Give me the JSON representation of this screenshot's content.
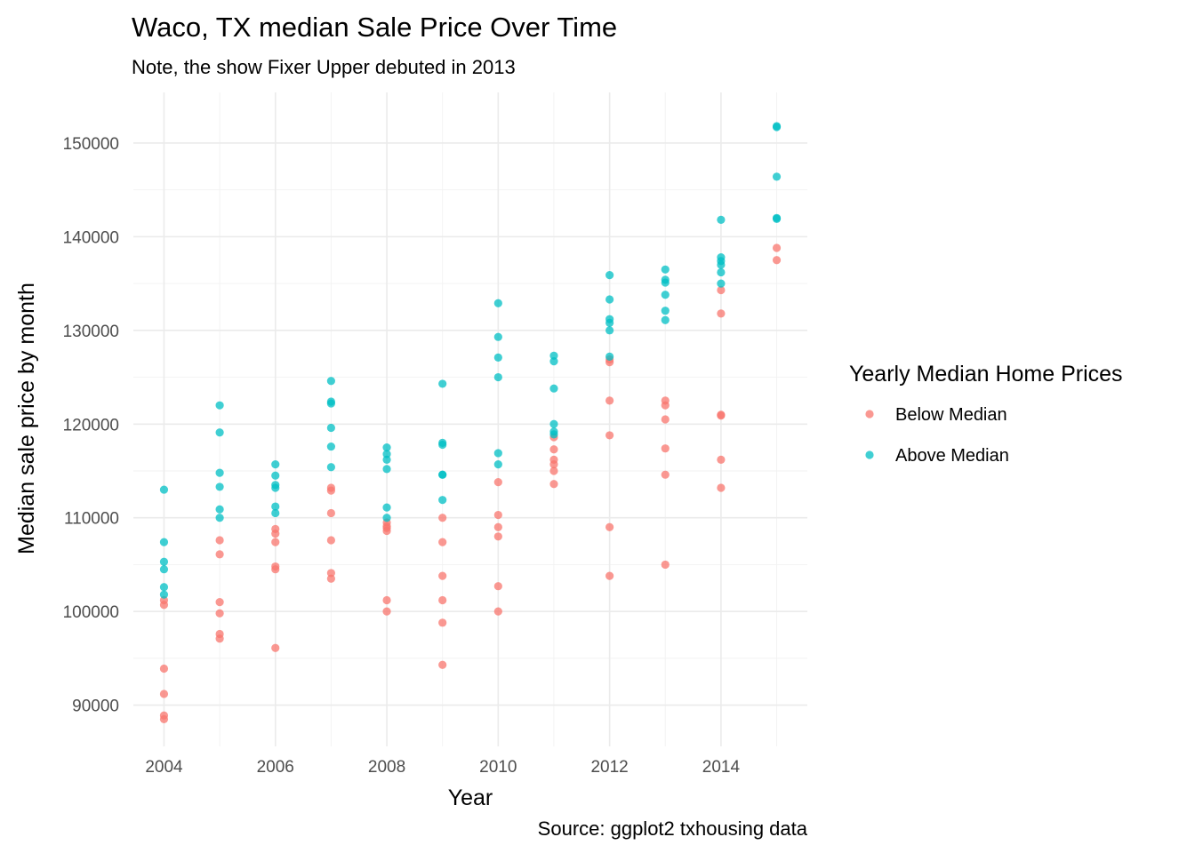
{
  "chart_data": {
    "type": "scatter",
    "title": "Waco, TX median Sale Price Over Time",
    "subtitle": "Note, the show Fixer Upper debuted in 2013",
    "caption": "Source: ggplot2 txhousing data",
    "xlabel": "Year",
    "ylabel": "Median sale price by month",
    "xlim": [
      2003.45,
      2015.55
    ],
    "ylim": [
      85600,
      155400
    ],
    "x_ticks": [
      2004,
      2006,
      2008,
      2010,
      2012,
      2014
    ],
    "y_ticks": [
      90000,
      100000,
      110000,
      120000,
      130000,
      140000,
      150000
    ],
    "x_tick_labels": [
      "2004",
      "2006",
      "2008",
      "2010",
      "2012",
      "2014"
    ],
    "y_tick_labels": [
      "90000",
      "100000",
      "110000",
      "120000",
      "130000",
      "140000",
      "150000"
    ],
    "grid": true,
    "legend": {
      "title": "Yearly Median Home Prices",
      "position": "right"
    },
    "series": [
      {
        "name": "Below Median",
        "color": "#F8766D",
        "points": [
          [
            2004,
            100700
          ],
          [
            2004,
            101200
          ],
          [
            2004,
            93900
          ],
          [
            2004,
            91200
          ],
          [
            2004,
            88900
          ],
          [
            2004,
            88500
          ],
          [
            2005,
            107600
          ],
          [
            2005,
            106100
          ],
          [
            2005,
            101000
          ],
          [
            2005,
            99800
          ],
          [
            2005,
            97600
          ],
          [
            2005,
            97100
          ],
          [
            2006,
            108800
          ],
          [
            2006,
            108300
          ],
          [
            2006,
            107400
          ],
          [
            2006,
            104800
          ],
          [
            2006,
            104500
          ],
          [
            2006,
            96100
          ],
          [
            2007,
            113200
          ],
          [
            2007,
            112900
          ],
          [
            2007,
            110500
          ],
          [
            2007,
            107600
          ],
          [
            2007,
            104100
          ],
          [
            2007,
            103500
          ],
          [
            2008,
            109500
          ],
          [
            2008,
            109100
          ],
          [
            2008,
            108900
          ],
          [
            2008,
            108600
          ],
          [
            2008,
            101200
          ],
          [
            2008,
            100000
          ],
          [
            2009,
            110000
          ],
          [
            2009,
            107400
          ],
          [
            2009,
            103800
          ],
          [
            2009,
            101200
          ],
          [
            2009,
            98800
          ],
          [
            2009,
            94300
          ],
          [
            2010,
            113800
          ],
          [
            2010,
            110300
          ],
          [
            2010,
            109000
          ],
          [
            2010,
            108000
          ],
          [
            2010,
            102700
          ],
          [
            2010,
            100000
          ],
          [
            2011,
            118600
          ],
          [
            2011,
            117300
          ],
          [
            2011,
            116200
          ],
          [
            2011,
            115700
          ],
          [
            2011,
            115000
          ],
          [
            2011,
            113600
          ],
          [
            2012,
            126600
          ],
          [
            2012,
            126900
          ],
          [
            2012,
            122500
          ],
          [
            2012,
            118800
          ],
          [
            2012,
            109000
          ],
          [
            2012,
            103800
          ],
          [
            2013,
            122500
          ],
          [
            2013,
            122000
          ],
          [
            2013,
            120500
          ],
          [
            2013,
            117400
          ],
          [
            2013,
            114600
          ],
          [
            2013,
            105000
          ],
          [
            2014,
            134300
          ],
          [
            2014,
            131800
          ],
          [
            2014,
            121000
          ],
          [
            2014,
            120900
          ],
          [
            2014,
            116200
          ],
          [
            2014,
            113200
          ],
          [
            2015,
            138800
          ],
          [
            2015,
            137500
          ]
        ]
      },
      {
        "name": "Above Median",
        "color": "#00BFC4",
        "points": [
          [
            2004,
            113000
          ],
          [
            2004,
            107400
          ],
          [
            2004,
            105300
          ],
          [
            2004,
            104500
          ],
          [
            2004,
            102600
          ],
          [
            2004,
            101800
          ],
          [
            2005,
            122000
          ],
          [
            2005,
            119100
          ],
          [
            2005,
            114800
          ],
          [
            2005,
            113300
          ],
          [
            2005,
            110900
          ],
          [
            2005,
            110000
          ],
          [
            2006,
            115700
          ],
          [
            2006,
            114500
          ],
          [
            2006,
            113500
          ],
          [
            2006,
            113200
          ],
          [
            2006,
            111200
          ],
          [
            2006,
            110500
          ],
          [
            2007,
            124600
          ],
          [
            2007,
            122400
          ],
          [
            2007,
            122200
          ],
          [
            2007,
            119600
          ],
          [
            2007,
            117600
          ],
          [
            2007,
            115400
          ],
          [
            2008,
            117500
          ],
          [
            2008,
            116800
          ],
          [
            2008,
            116200
          ],
          [
            2008,
            115200
          ],
          [
            2008,
            111100
          ],
          [
            2008,
            110000
          ],
          [
            2009,
            124300
          ],
          [
            2009,
            118000
          ],
          [
            2009,
            117800
          ],
          [
            2009,
            114600
          ],
          [
            2009,
            114600
          ],
          [
            2009,
            111900
          ],
          [
            2010,
            132900
          ],
          [
            2010,
            129300
          ],
          [
            2010,
            127100
          ],
          [
            2010,
            125000
          ],
          [
            2010,
            116900
          ],
          [
            2010,
            115700
          ],
          [
            2011,
            127300
          ],
          [
            2011,
            126700
          ],
          [
            2011,
            123800
          ],
          [
            2011,
            120000
          ],
          [
            2011,
            119200
          ],
          [
            2011,
            118900
          ],
          [
            2012,
            135900
          ],
          [
            2012,
            133300
          ],
          [
            2012,
            131200
          ],
          [
            2012,
            130800
          ],
          [
            2012,
            130000
          ],
          [
            2012,
            127200
          ],
          [
            2013,
            136500
          ],
          [
            2013,
            135400
          ],
          [
            2013,
            135100
          ],
          [
            2013,
            133800
          ],
          [
            2013,
            132100
          ],
          [
            2013,
            131100
          ],
          [
            2014,
            141800
          ],
          [
            2014,
            137800
          ],
          [
            2014,
            137400
          ],
          [
            2014,
            137000
          ],
          [
            2014,
            136200
          ],
          [
            2014,
            135000
          ],
          [
            2015,
            151800
          ],
          [
            2015,
            151700
          ],
          [
            2015,
            146400
          ],
          [
            2015,
            142000
          ],
          [
            2015,
            141900
          ]
        ]
      }
    ]
  }
}
